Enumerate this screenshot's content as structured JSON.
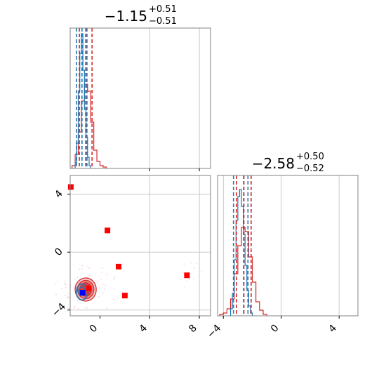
{
  "chart_data": {
    "type": "corner",
    "colors": {
      "red": "#d62728",
      "blue": "#1f77b4",
      "red_marker": "#ff0000",
      "blue_marker": "#0000ff",
      "frame": "#808080",
      "grid": "#c8c8c8"
    },
    "params": [
      {
        "title": {
          "value": "−1.15",
          "sup": "+0.51",
          "sub": "−0.51"
        },
        "range": [
          -2.4,
          8.9
        ],
        "ticks": [
          4,
          8
        ],
        "tick_labels": [
          "4",
          "8"
        ],
        "red_quantiles": [
          -1.66,
          -1.15,
          -0.64
        ],
        "blue_quantiles": [
          -1.9,
          -1.45,
          -1.05
        ],
        "red_hist": [
          {
            "x0": -2.25,
            "x1": -2.0,
            "h": 0.02
          },
          {
            "x0": -2.0,
            "x1": -1.75,
            "h": 0.1
          },
          {
            "x0": -1.75,
            "x1": -1.5,
            "h": 0.26
          },
          {
            "x0": -1.5,
            "x1": -1.25,
            "h": 0.48
          },
          {
            "x0": -1.25,
            "x1": -1.0,
            "h": 0.6
          },
          {
            "x0": -1.0,
            "x1": -0.75,
            "h": 0.55
          },
          {
            "x0": -0.75,
            "x1": -0.5,
            "h": 0.33
          },
          {
            "x0": -0.5,
            "x1": -0.25,
            "h": 0.13
          },
          {
            "x0": -0.25,
            "x1": 0.0,
            "h": 0.05
          },
          {
            "x0": 0.0,
            "x1": 0.25,
            "h": 0.02
          },
          {
            "x0": 0.25,
            "x1": 0.5,
            "h": 0.01
          }
        ],
        "blue_hist": [
          {
            "x0": -2.0,
            "x1": -1.875,
            "h": 0.04
          },
          {
            "x0": -1.875,
            "x1": -1.75,
            "h": 0.18
          },
          {
            "x0": -1.75,
            "x1": -1.625,
            "h": 0.55
          },
          {
            "x0": -1.625,
            "x1": -1.5,
            "h": 0.82
          },
          {
            "x0": -1.5,
            "x1": -1.375,
            "h": 0.96
          },
          {
            "x0": -1.375,
            "x1": -1.25,
            "h": 0.7
          },
          {
            "x0": -1.25,
            "x1": -1.125,
            "h": 0.42
          },
          {
            "x0": -1.125,
            "x1": -1.0,
            "h": 0.22
          },
          {
            "x0": -1.0,
            "x1": -0.875,
            "h": 0.08
          },
          {
            "x0": -0.875,
            "x1": -0.75,
            "h": 0.02
          }
        ]
      },
      {
        "title": {
          "value": "−2.58",
          "sup": "+0.50",
          "sub": "−0.52"
        },
        "range": [
          -4.4,
          5.3
        ],
        "ticks": [
          -4,
          0,
          4
        ],
        "tick_labels": [
          "−4",
          "0",
          "4"
        ],
        "red_quantiles": [
          -3.1,
          -2.58,
          -2.08
        ],
        "blue_quantiles": [
          -3.3,
          -2.6,
          -2.3
        ],
        "red_hist": [
          {
            "x0": -4.25,
            "x1": -4.0,
            "h": 0.01
          },
          {
            "x0": -4.0,
            "x1": -3.75,
            "h": 0.02
          },
          {
            "x0": -3.75,
            "x1": -3.5,
            "h": 0.05
          },
          {
            "x0": -3.5,
            "x1": -3.25,
            "h": 0.12
          },
          {
            "x0": -3.25,
            "x1": -3.0,
            "h": 0.3
          },
          {
            "x0": -3.0,
            "x1": -2.75,
            "h": 0.5
          },
          {
            "x0": -2.75,
            "x1": -2.5,
            "h": 0.63
          },
          {
            "x0": -2.5,
            "x1": -2.25,
            "h": 0.6
          },
          {
            "x0": -2.25,
            "x1": -2.0,
            "h": 0.42
          },
          {
            "x0": -2.0,
            "x1": -1.75,
            "h": 0.24
          },
          {
            "x0": -1.75,
            "x1": -1.5,
            "h": 0.1
          },
          {
            "x0": -1.5,
            "x1": -1.25,
            "h": 0.04
          },
          {
            "x0": -1.25,
            "x1": -1.0,
            "h": 0.01
          }
        ],
        "blue_hist": [
          {
            "x0": -3.5,
            "x1": -3.375,
            "h": 0.05
          },
          {
            "x0": -3.375,
            "x1": -3.25,
            "h": 0.16
          },
          {
            "x0": -3.25,
            "x1": -3.125,
            "h": 0.4
          },
          {
            "x0": -3.125,
            "x1": -3.0,
            "h": 0.68
          },
          {
            "x0": -3.0,
            "x1": -2.875,
            "h": 0.85
          },
          {
            "x0": -2.875,
            "x1": -2.75,
            "h": 0.9
          },
          {
            "x0": -2.75,
            "x1": -2.625,
            "h": 0.78
          },
          {
            "x0": -2.625,
            "x1": -2.5,
            "h": 0.58
          },
          {
            "x0": -2.5,
            "x1": -2.375,
            "h": 0.36
          },
          {
            "x0": -2.375,
            "x1": -2.25,
            "h": 0.18
          },
          {
            "x0": -2.25,
            "x1": -2.125,
            "h": 0.07
          },
          {
            "x0": -2.125,
            "x1": -2.0,
            "h": 0.02
          }
        ]
      }
    ],
    "joint": {
      "x_range": [
        -2.4,
        8.9
      ],
      "y_range": [
        -4.4,
        5.3
      ],
      "y_ticks": [
        -4,
        0,
        4
      ],
      "y_tick_labels": [
        "−4",
        "0",
        "4"
      ],
      "red_contours": [
        {
          "cx": -1.15,
          "cy": -2.58,
          "rx": 0.85,
          "ry": 0.8,
          "level": "outer"
        },
        {
          "cx": -1.15,
          "cy": -2.58,
          "rx": 0.66,
          "ry": 0.63,
          "level": "middle"
        },
        {
          "cx": -1.15,
          "cy": -2.58,
          "rx": 0.46,
          "ry": 0.46,
          "level": "inner"
        }
      ],
      "blue_contours": [
        {
          "cx": -1.45,
          "cy": -2.75,
          "rx": 0.45,
          "ry": 0.55
        },
        {
          "cx": -1.45,
          "cy": -2.7,
          "rx": 0.26,
          "ry": 0.3
        }
      ],
      "red_markers": [
        {
          "x": -2.35,
          "y": 4.5
        },
        {
          "x": 0.6,
          "y": 1.5
        },
        {
          "x": 1.5,
          "y": -1.0
        },
        {
          "x": 2.0,
          "y": -3.0
        },
        {
          "x": 7.0,
          "y": -1.6
        },
        {
          "x": -0.9,
          "y": -2.5
        }
      ],
      "blue_markers": [
        {
          "x": -1.4,
          "y": -2.8
        }
      ]
    }
  }
}
